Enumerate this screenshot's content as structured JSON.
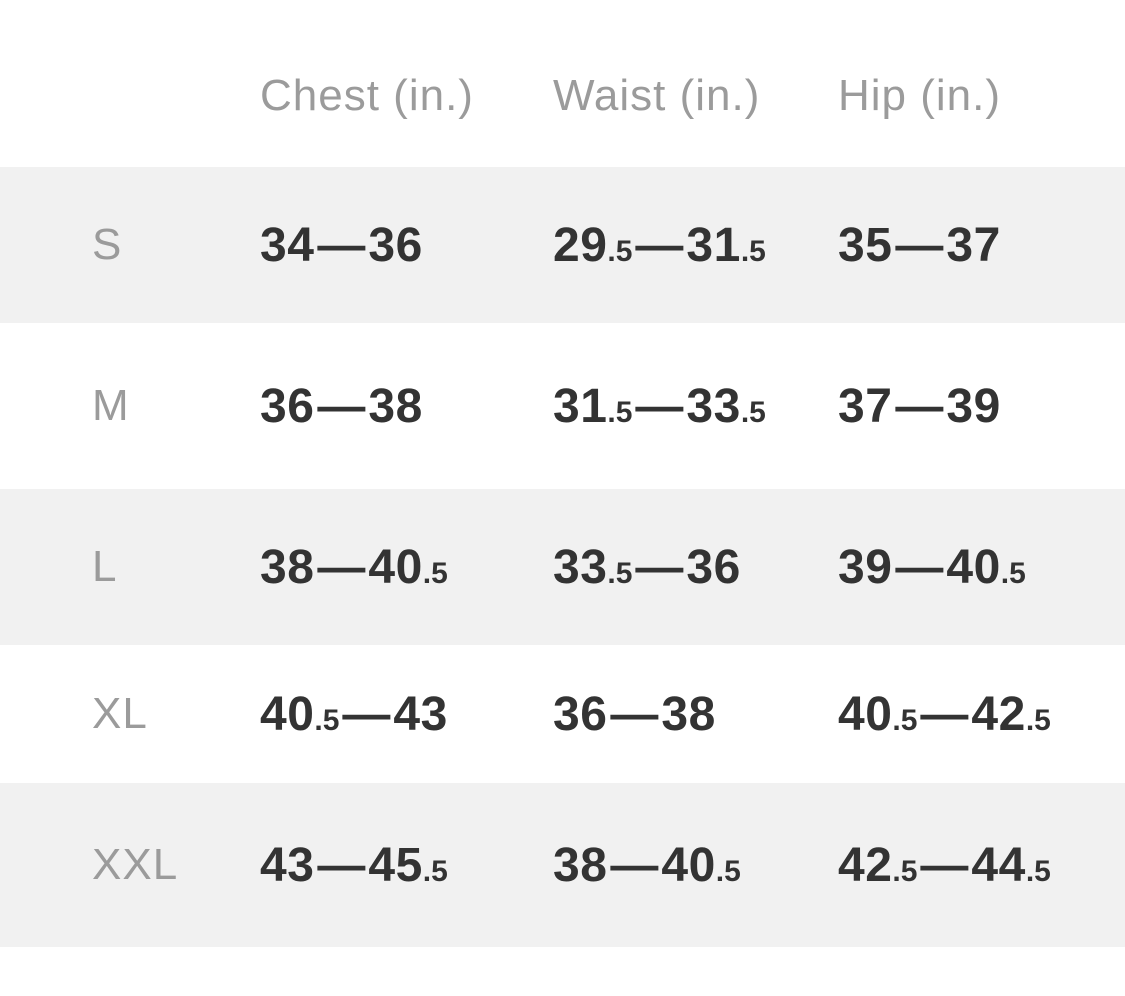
{
  "chart_data": {
    "type": "table",
    "columns": [
      "Chest (in.)",
      "Waist (in.)",
      "Hip (in.)"
    ],
    "row_labels": [
      "S",
      "M",
      "L",
      "XL",
      "XXL"
    ],
    "rows": [
      [
        "34—36",
        "29.5—31.5",
        "35—37"
      ],
      [
        "36—38",
        "31.5—33.5",
        "37—39"
      ],
      [
        "38—40.5",
        "33.5—36",
        "39—40.5"
      ],
      [
        "40.5—43",
        "36—38",
        "40.5—42.5"
      ],
      [
        "43—45.5",
        "38—40.5",
        "42.5—44.5"
      ]
    ]
  },
  "colors": {
    "background": "#ffffff",
    "alt_row_background": "#f1f1f1",
    "value_text": "#333333",
    "muted_text": "#9b9b9b"
  }
}
